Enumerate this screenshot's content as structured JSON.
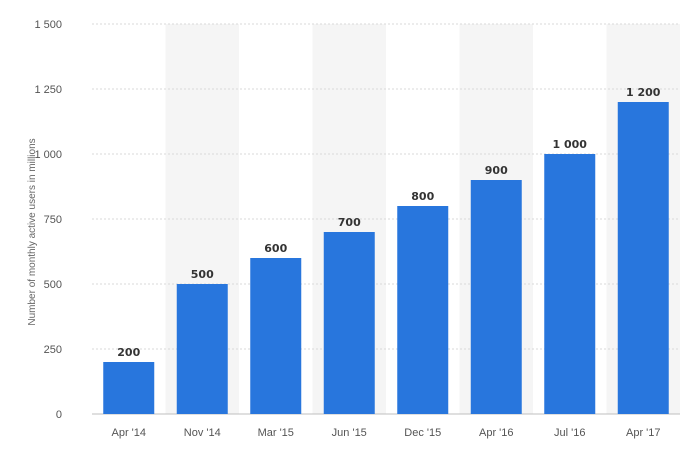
{
  "chart_data": {
    "type": "bar",
    "categories": [
      "Apr '14",
      "Nov '14",
      "Mar '15",
      "Jun '15",
      "Dec '15",
      "Apr '16",
      "Jul '16",
      "Apr '17"
    ],
    "values": [
      200,
      500,
      600,
      700,
      800,
      900,
      1000,
      1200
    ],
    "value_labels": [
      "200",
      "500",
      "600",
      "700",
      "800",
      "900",
      "1 000",
      "1 200"
    ],
    "title": "",
    "xlabel": "",
    "ylabel": "Number of monthly active users in millions",
    "ylim": [
      0,
      1500
    ],
    "yticks": [
      0,
      250,
      500,
      750,
      1000,
      1250,
      1500
    ],
    "ytick_labels": [
      "0",
      "250",
      "500",
      "750",
      "1 000",
      "1 250",
      "1 500"
    ],
    "grid": true,
    "bar_color": "#2876DD",
    "band_color": "#F5F5F5"
  }
}
